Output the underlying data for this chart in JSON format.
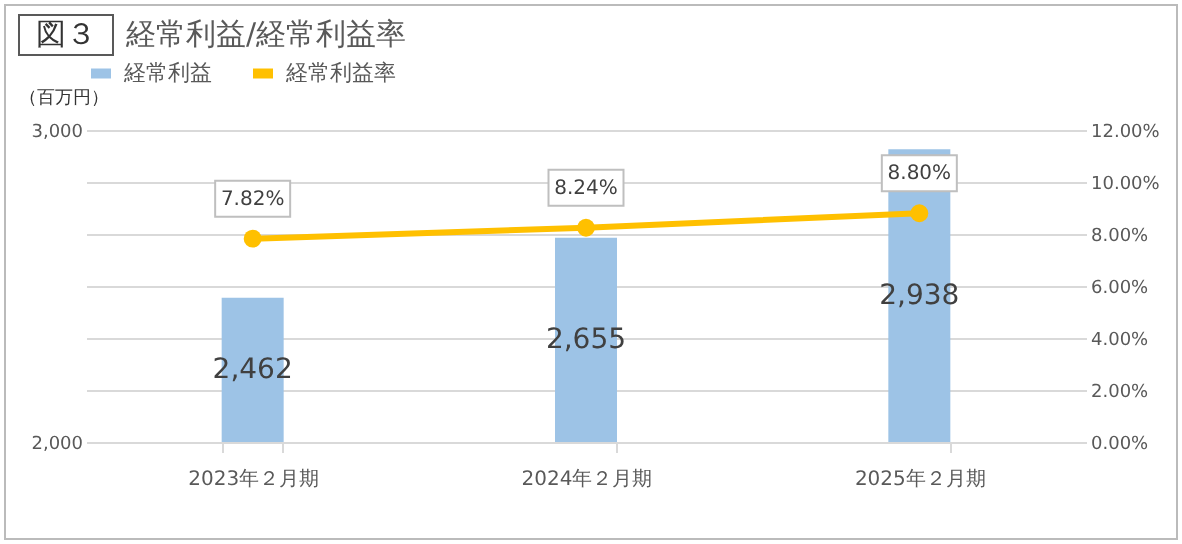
{
  "chart_data": {
    "type": "bar",
    "title": "図３ 経常利益/経常利益率",
    "ylabel": "（百万円）",
    "categories": [
      "2023年２月期",
      "2024年２月期",
      "2025年２月期"
    ],
    "series": [
      {
        "name": "経常利益",
        "color": "#9dc3e6",
        "values": [
          2462,
          2655,
          2938
        ],
        "value_labels": [
          "2,462",
          "2,655",
          "2,938"
        ]
      },
      {
        "name": "経常利益率",
        "type": "line",
        "axis": "y2",
        "color": "#ffc000",
        "values": [
          7.82,
          8.24,
          8.8
        ],
        "value_labels": [
          "7.82%",
          "8.24%",
          "8.80%"
        ]
      }
    ],
    "ylim": [
      2000,
      3000
    ],
    "yticks": [
      {
        "value": 2000,
        "label": "2,000"
      },
      {
        "value": 3000,
        "label": "3,000"
      }
    ],
    "y2lim": [
      0,
      12
    ],
    "y2ticks": [
      {
        "value": 0,
        "label": "0.00%"
      },
      {
        "value": 2,
        "label": "2.00%"
      },
      {
        "value": 4,
        "label": "4.00%"
      },
      {
        "value": 6,
        "label": "6.00%"
      },
      {
        "value": 8,
        "label": "8.00%"
      },
      {
        "value": 10,
        "label": "10.00%"
      },
      {
        "value": 12,
        "label": "12.00%"
      }
    ],
    "grid": true,
    "legend": "top",
    "marker": "circle",
    "line_style": "solid"
  }
}
